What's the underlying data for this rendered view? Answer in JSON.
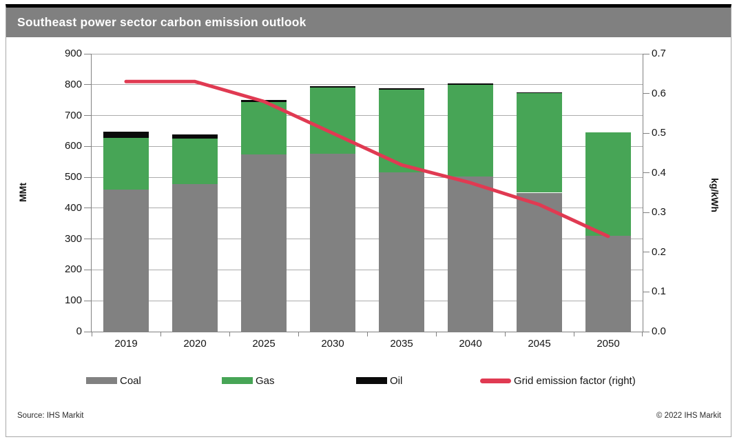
{
  "header": {
    "title": "Southeast power sector carbon emission outlook"
  },
  "footer": {
    "source": "Source: IHS Markit",
    "copyright": "© 2022 IHS Markit"
  },
  "colors": {
    "header_bg": "#808080",
    "coal": "#818181",
    "gas": "#47A556",
    "oil": "#0a0a0a",
    "line": "#E03A52",
    "gridline": "#ababab",
    "axis": "#808080",
    "top_bar": "#000000"
  },
  "chart_data": {
    "type": "bar",
    "subtype": "stacked-bars-with-right-axis-line",
    "title": "Southeast power sector carbon emission outlook",
    "categories": [
      "2019",
      "2020",
      "2025",
      "2030",
      "2035",
      "2040",
      "2045",
      "2050"
    ],
    "series": [
      {
        "name": "Coal",
        "type": "bar",
        "axis": "left",
        "color": "#818181",
        "values": [
          460,
          477,
          575,
          577,
          516,
          503,
          450,
          311
        ]
      },
      {
        "name": "Gas",
        "type": "bar",
        "axis": "left",
        "color": "#47A556",
        "values": [
          168,
          148,
          169,
          213,
          268,
          297,
          323,
          335
        ]
      },
      {
        "name": "Oil",
        "type": "bar",
        "axis": "left",
        "color": "#0a0a0a",
        "values": [
          20,
          13,
          6,
          6,
          4,
          4,
          2,
          0
        ]
      },
      {
        "name": "Grid emission factor (right)",
        "type": "line",
        "axis": "right",
        "color": "#E03A52",
        "values": [
          0.63,
          0.63,
          0.58,
          0.5,
          0.42,
          0.375,
          0.32,
          0.24
        ]
      }
    ],
    "stacked_totals": [
      648,
      638,
      750,
      796,
      788,
      804,
      775,
      646
    ],
    "left_axis": {
      "title": "MMt",
      "min": 0,
      "max": 900,
      "step": 100,
      "ticks": [
        "0",
        "100",
        "200",
        "300",
        "400",
        "500",
        "600",
        "700",
        "800",
        "900"
      ]
    },
    "right_axis": {
      "title": "kg/kWh",
      "min": 0.0,
      "max": 0.7,
      "step": 0.1,
      "ticks": [
        "0.0",
        "0.1",
        "0.2",
        "0.3",
        "0.4",
        "0.5",
        "0.6",
        "0.7"
      ]
    },
    "grid": true,
    "legend_position": "bottom",
    "legend": {
      "items": [
        {
          "label": "Coal",
          "swatch": "box",
          "color": "#818181"
        },
        {
          "label": "Gas",
          "swatch": "box",
          "color": "#47A556"
        },
        {
          "label": "Oil",
          "swatch": "box",
          "color": "#0a0a0a"
        },
        {
          "label": "Grid emission factor (right)",
          "swatch": "line",
          "color": "#E03A52"
        }
      ]
    }
  }
}
